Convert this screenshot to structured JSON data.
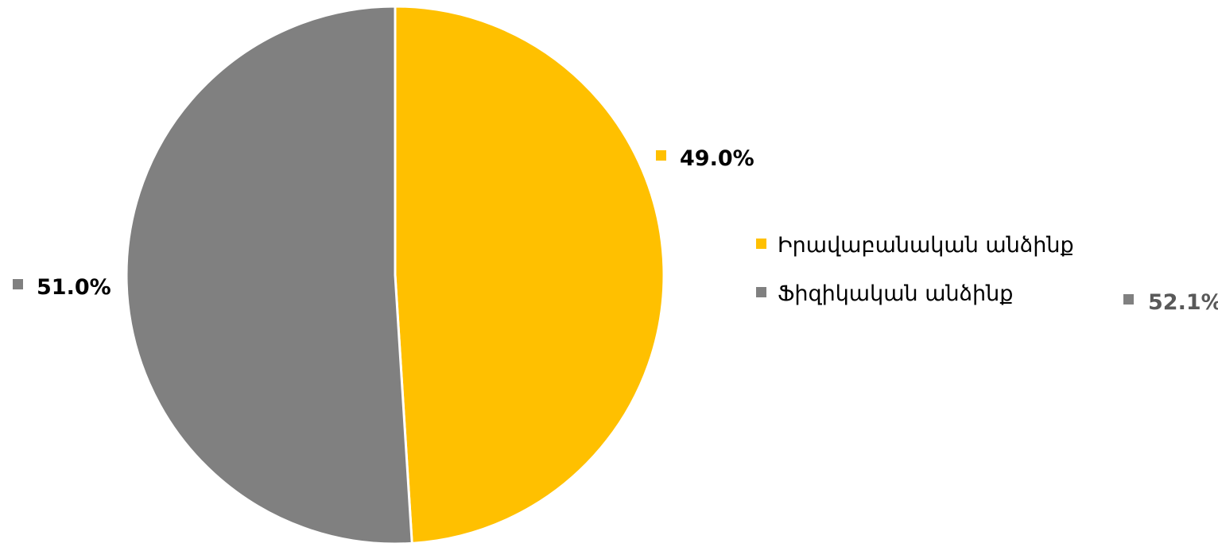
{
  "chart_data": {
    "type": "pie",
    "categories": [
      "Իրավաբանական անձինք",
      "Ֆիզիկական անձինք"
    ],
    "values": [
      49.0,
      51.0
    ],
    "data_labels": [
      "49.0%",
      "51.0%"
    ],
    "colors": [
      "#FFC000",
      "#808080"
    ],
    "extra_label": {
      "text": "52.1%",
      "color": "#808080"
    },
    "legend": {
      "placement": "right",
      "items": [
        {
          "label": "Իրավաբանական անձինք",
          "color": "#FFC000"
        },
        {
          "label": "Ֆիզիկական անձինք",
          "color": "#808080"
        }
      ]
    },
    "start_angle_deg": 0,
    "direction": "clockwise"
  }
}
